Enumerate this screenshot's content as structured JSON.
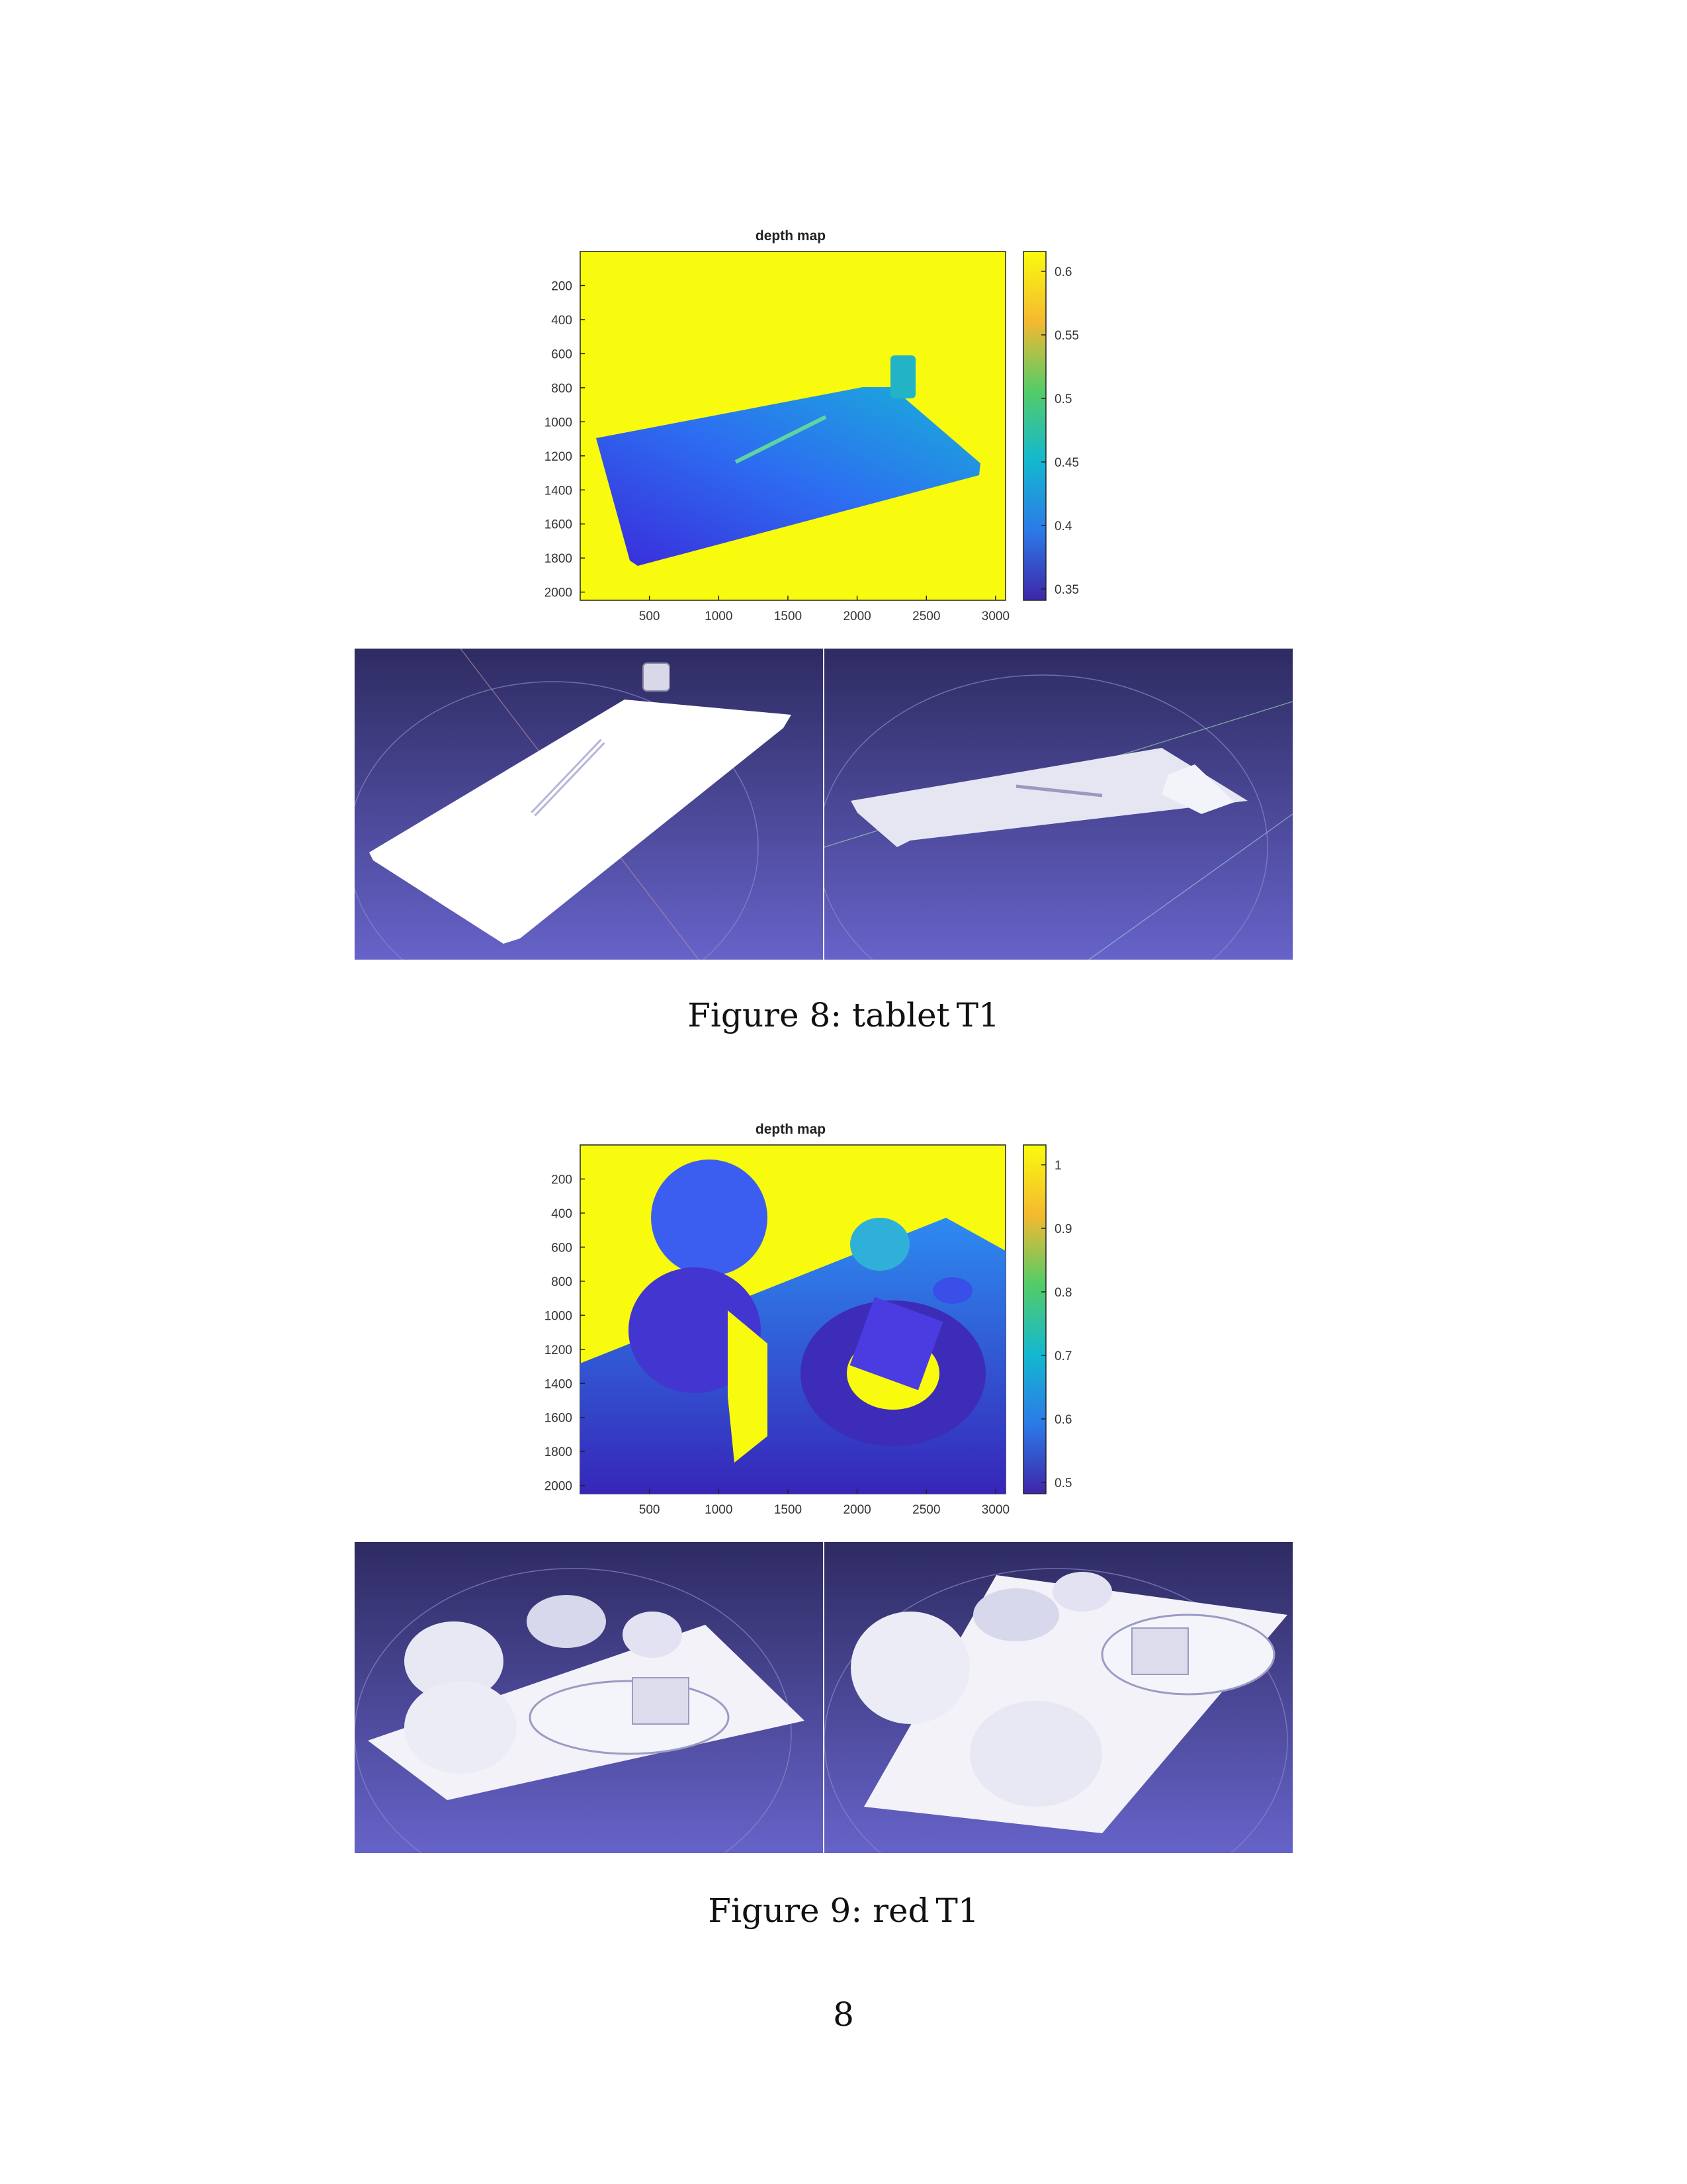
{
  "figures": [
    {
      "id": "tablet",
      "caption": "Figure 8: tablet_T1",
      "caption_display": "Figure 8: tablet T1",
      "plot": {
        "title": "depth map",
        "y_ticks": [
          "200",
          "400",
          "600",
          "800",
          "1000",
          "1200",
          "1400",
          "1600",
          "1800",
          "2000"
        ],
        "x_ticks": [
          "500",
          "1000",
          "1500",
          "2000",
          "2500",
          "3000"
        ],
        "colorbar_ticks": [
          "0.6",
          "0.55",
          "0.5",
          "0.45",
          "0.4",
          "0.35"
        ]
      },
      "renders": [
        "left view",
        "right view"
      ]
    },
    {
      "id": "red",
      "caption": "Figure 9: red_T1",
      "caption_display": "Figure 9: red T1",
      "plot": {
        "title": "depth map",
        "y_ticks": [
          "200",
          "400",
          "600",
          "800",
          "1000",
          "1200",
          "1400",
          "1600",
          "1800",
          "2000"
        ],
        "x_ticks": [
          "500",
          "1000",
          "1500",
          "2000",
          "2500",
          "3000"
        ],
        "colorbar_ticks": [
          "1",
          "0.9",
          "0.8",
          "0.7",
          "0.6",
          "0.5"
        ]
      },
      "renders": [
        "left view",
        "right view"
      ]
    }
  ],
  "page_number": "8",
  "colors": {
    "parula_yellow": "#f9fb0e",
    "parula_blue": "#3e26a8",
    "viewer_bg_top": "#2e2b62",
    "viewer_bg_bottom": "#6663c9"
  }
}
